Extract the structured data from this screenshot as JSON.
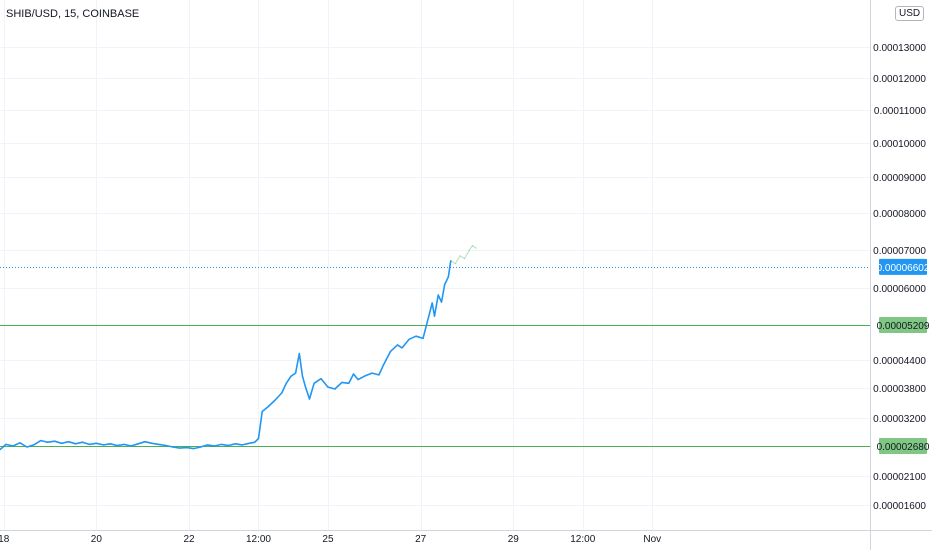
{
  "header": {
    "title": "SHIB/USD, 15, COINBASE",
    "currency": "USD"
  },
  "chart_data": {
    "type": "line",
    "ylim": [
      1.3e-05,
      0.000143
    ],
    "y_ticks": [
      {
        "v": 1.6e-05,
        "label": "0.00001600"
      },
      {
        "v": 2.1e-05,
        "label": "0.00002100"
      },
      {
        "v": 3.2e-05,
        "label": "0.00003200"
      },
      {
        "v": 3.8e-05,
        "label": "0.00003800"
      },
      {
        "v": 4.4e-05,
        "label": "0.00004400"
      },
      {
        "v": 6e-05,
        "label": "0.00006000"
      },
      {
        "v": 7e-05,
        "label": "0.00007000"
      },
      {
        "v": 8e-05,
        "label": "0.00008000"
      },
      {
        "v": 9e-05,
        "label": "0.00009000"
      },
      {
        "v": 0.0001,
        "label": "0.00010000"
      },
      {
        "v": 0.00011,
        "label": "0.00011000"
      },
      {
        "v": 0.00012,
        "label": "0.00012000"
      },
      {
        "v": 0.00013,
        "label": "0.00013000"
      }
    ],
    "x_ticks": [
      {
        "day": 18,
        "label": "18"
      },
      {
        "day": 20,
        "label": "20"
      },
      {
        "day": 22,
        "label": "22"
      },
      {
        "day": 23.5,
        "label": "12:00"
      },
      {
        "day": 25,
        "label": "25"
      },
      {
        "day": 27,
        "label": "27"
      },
      {
        "day": 29,
        "label": "29"
      },
      {
        "day": 30.5,
        "label": "12:00"
      },
      {
        "day": 32,
        "label": "Nov"
      }
    ],
    "xlim": [
      17.92,
      36.7
    ],
    "price_lines": [
      {
        "price": 6.602e-05,
        "label": "0.00006602",
        "style": "dotted",
        "color": "#2196f3"
      },
      {
        "price": 5.209e-05,
        "label": "0.00005209",
        "style": "solid",
        "color": "#4caf50"
      },
      {
        "price": 2.68e-05,
        "label": "0.00002680",
        "style": "solid",
        "color": "#4caf50"
      }
    ],
    "series": [
      {
        "style": "solid",
        "color": "#2196f3",
        "points": [
          [
            17.92,
            2.61e-05
          ],
          [
            18.05,
            2.71e-05
          ],
          [
            18.2,
            2.68e-05
          ],
          [
            18.35,
            2.74e-05
          ],
          [
            18.5,
            2.66e-05
          ],
          [
            18.65,
            2.7e-05
          ],
          [
            18.8,
            2.78e-05
          ],
          [
            18.95,
            2.75e-05
          ],
          [
            19.1,
            2.77e-05
          ],
          [
            19.25,
            2.73e-05
          ],
          [
            19.4,
            2.76e-05
          ],
          [
            19.55,
            2.72e-05
          ],
          [
            19.7,
            2.75e-05
          ],
          [
            19.85,
            2.71e-05
          ],
          [
            20.0,
            2.73e-05
          ],
          [
            20.15,
            2.7e-05
          ],
          [
            20.3,
            2.72e-05
          ],
          [
            20.45,
            2.69e-05
          ],
          [
            20.6,
            2.71e-05
          ],
          [
            20.75,
            2.68e-05
          ],
          [
            20.9,
            2.72e-05
          ],
          [
            21.05,
            2.76e-05
          ],
          [
            21.2,
            2.73e-05
          ],
          [
            21.35,
            2.71e-05
          ],
          [
            21.5,
            2.69e-05
          ],
          [
            21.65,
            2.66e-05
          ],
          [
            21.8,
            2.64e-05
          ],
          [
            21.95,
            2.65e-05
          ],
          [
            22.1,
            2.63e-05
          ],
          [
            22.25,
            2.66e-05
          ],
          [
            22.4,
            2.7e-05
          ],
          [
            22.55,
            2.68e-05
          ],
          [
            22.7,
            2.71e-05
          ],
          [
            22.85,
            2.69e-05
          ],
          [
            23.0,
            2.72e-05
          ],
          [
            23.15,
            2.7e-05
          ],
          [
            23.3,
            2.73e-05
          ],
          [
            23.42,
            2.75e-05
          ],
          [
            23.5,
            2.82e-05
          ],
          [
            23.58,
            3.33e-05
          ],
          [
            23.7,
            3.42e-05
          ],
          [
            23.85,
            3.55e-05
          ],
          [
            24.0,
            3.7e-05
          ],
          [
            24.1,
            3.9e-05
          ],
          [
            24.2,
            4.05e-05
          ],
          [
            24.3,
            4.12e-05
          ],
          [
            24.38,
            4.55e-05
          ],
          [
            24.45,
            4.05e-05
          ],
          [
            24.52,
            3.8e-05
          ],
          [
            24.6,
            3.58e-05
          ],
          [
            24.7,
            3.9e-05
          ],
          [
            24.85,
            4e-05
          ],
          [
            25.0,
            3.82e-05
          ],
          [
            25.15,
            3.78e-05
          ],
          [
            25.3,
            3.92e-05
          ],
          [
            25.45,
            3.9e-05
          ],
          [
            25.55,
            4.1e-05
          ],
          [
            25.65,
            3.98e-05
          ],
          [
            25.8,
            4.06e-05
          ],
          [
            25.95,
            4.12e-05
          ],
          [
            26.1,
            4.08e-05
          ],
          [
            26.2,
            4.3e-05
          ],
          [
            26.35,
            4.6e-05
          ],
          [
            26.5,
            4.75e-05
          ],
          [
            26.6,
            4.68e-05
          ],
          [
            26.75,
            4.88e-05
          ],
          [
            26.9,
            4.95e-05
          ],
          [
            27.05,
            4.9e-05
          ],
          [
            27.15,
            5.3e-05
          ],
          [
            27.25,
            5.68e-05
          ],
          [
            27.3,
            5.4e-05
          ],
          [
            27.38,
            5.85e-05
          ],
          [
            27.45,
            5.7e-05
          ],
          [
            27.52,
            6.1e-05
          ],
          [
            27.6,
            6.32e-05
          ],
          [
            27.65,
            6.75e-05
          ]
        ]
      },
      {
        "style": "faded",
        "color": "#4caf50",
        "points": [
          [
            27.65,
            6.75e-05
          ],
          [
            27.75,
            6.68e-05
          ],
          [
            27.85,
            6.86e-05
          ],
          [
            27.95,
            6.8e-05
          ],
          [
            28.05,
            7e-05
          ],
          [
            28.12,
            7.12e-05
          ],
          [
            28.2,
            7.05e-05
          ]
        ]
      }
    ]
  }
}
